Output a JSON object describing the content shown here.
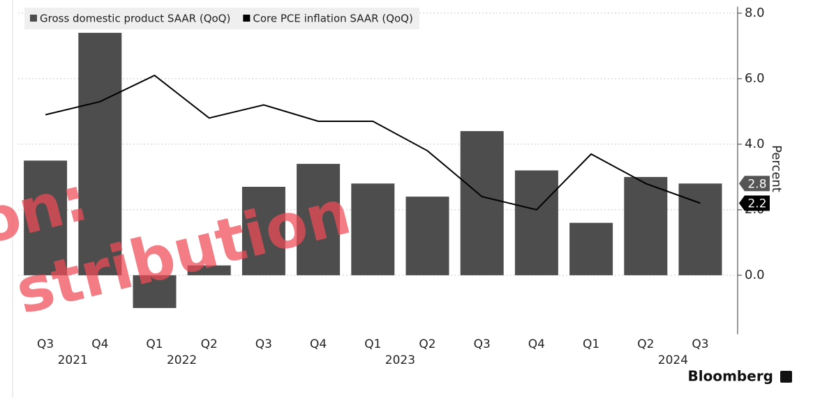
{
  "chart_data": {
    "type": "bar_line",
    "categories": [
      "Q3",
      "Q4",
      "Q1",
      "Q2",
      "Q3",
      "Q4",
      "Q1",
      "Q2",
      "Q3",
      "Q4",
      "Q1",
      "Q2",
      "Q3"
    ],
    "year_labels": [
      "2021",
      null,
      "2022",
      null,
      null,
      null,
      "2023",
      null,
      null,
      null,
      null,
      "2024",
      null
    ],
    "series": [
      {
        "name": "Gross domestic product SAAR (QoQ)",
        "type": "bar",
        "color": "#4d4d4d",
        "values": [
          3.5,
          7.4,
          -1.0,
          0.3,
          2.7,
          3.4,
          2.8,
          2.4,
          4.4,
          3.2,
          1.6,
          3.0,
          2.8
        ]
      },
      {
        "name": "Core PCE inflation SAAR (QoQ)",
        "type": "line",
        "color": "#000000",
        "values": [
          4.9,
          5.3,
          6.1,
          4.8,
          5.2,
          4.7,
          4.7,
          3.8,
          2.4,
          2.0,
          3.7,
          2.8,
          2.2
        ]
      }
    ],
    "y_axis_label": "Percent",
    "ylim": [
      -1.8,
      8.2
    ],
    "yticks": [
      {
        "value": 0,
        "label": "0.0"
      },
      {
        "value": 2,
        "label": "2.0"
      },
      {
        "value": 4,
        "label": "4.0"
      },
      {
        "value": 6,
        "label": "6.0"
      },
      {
        "value": 8,
        "label": "8.0"
      }
    ],
    "grid": true,
    "source": "Bloomberg",
    "watermark": [
      "on:",
      "stribution"
    ]
  }
}
